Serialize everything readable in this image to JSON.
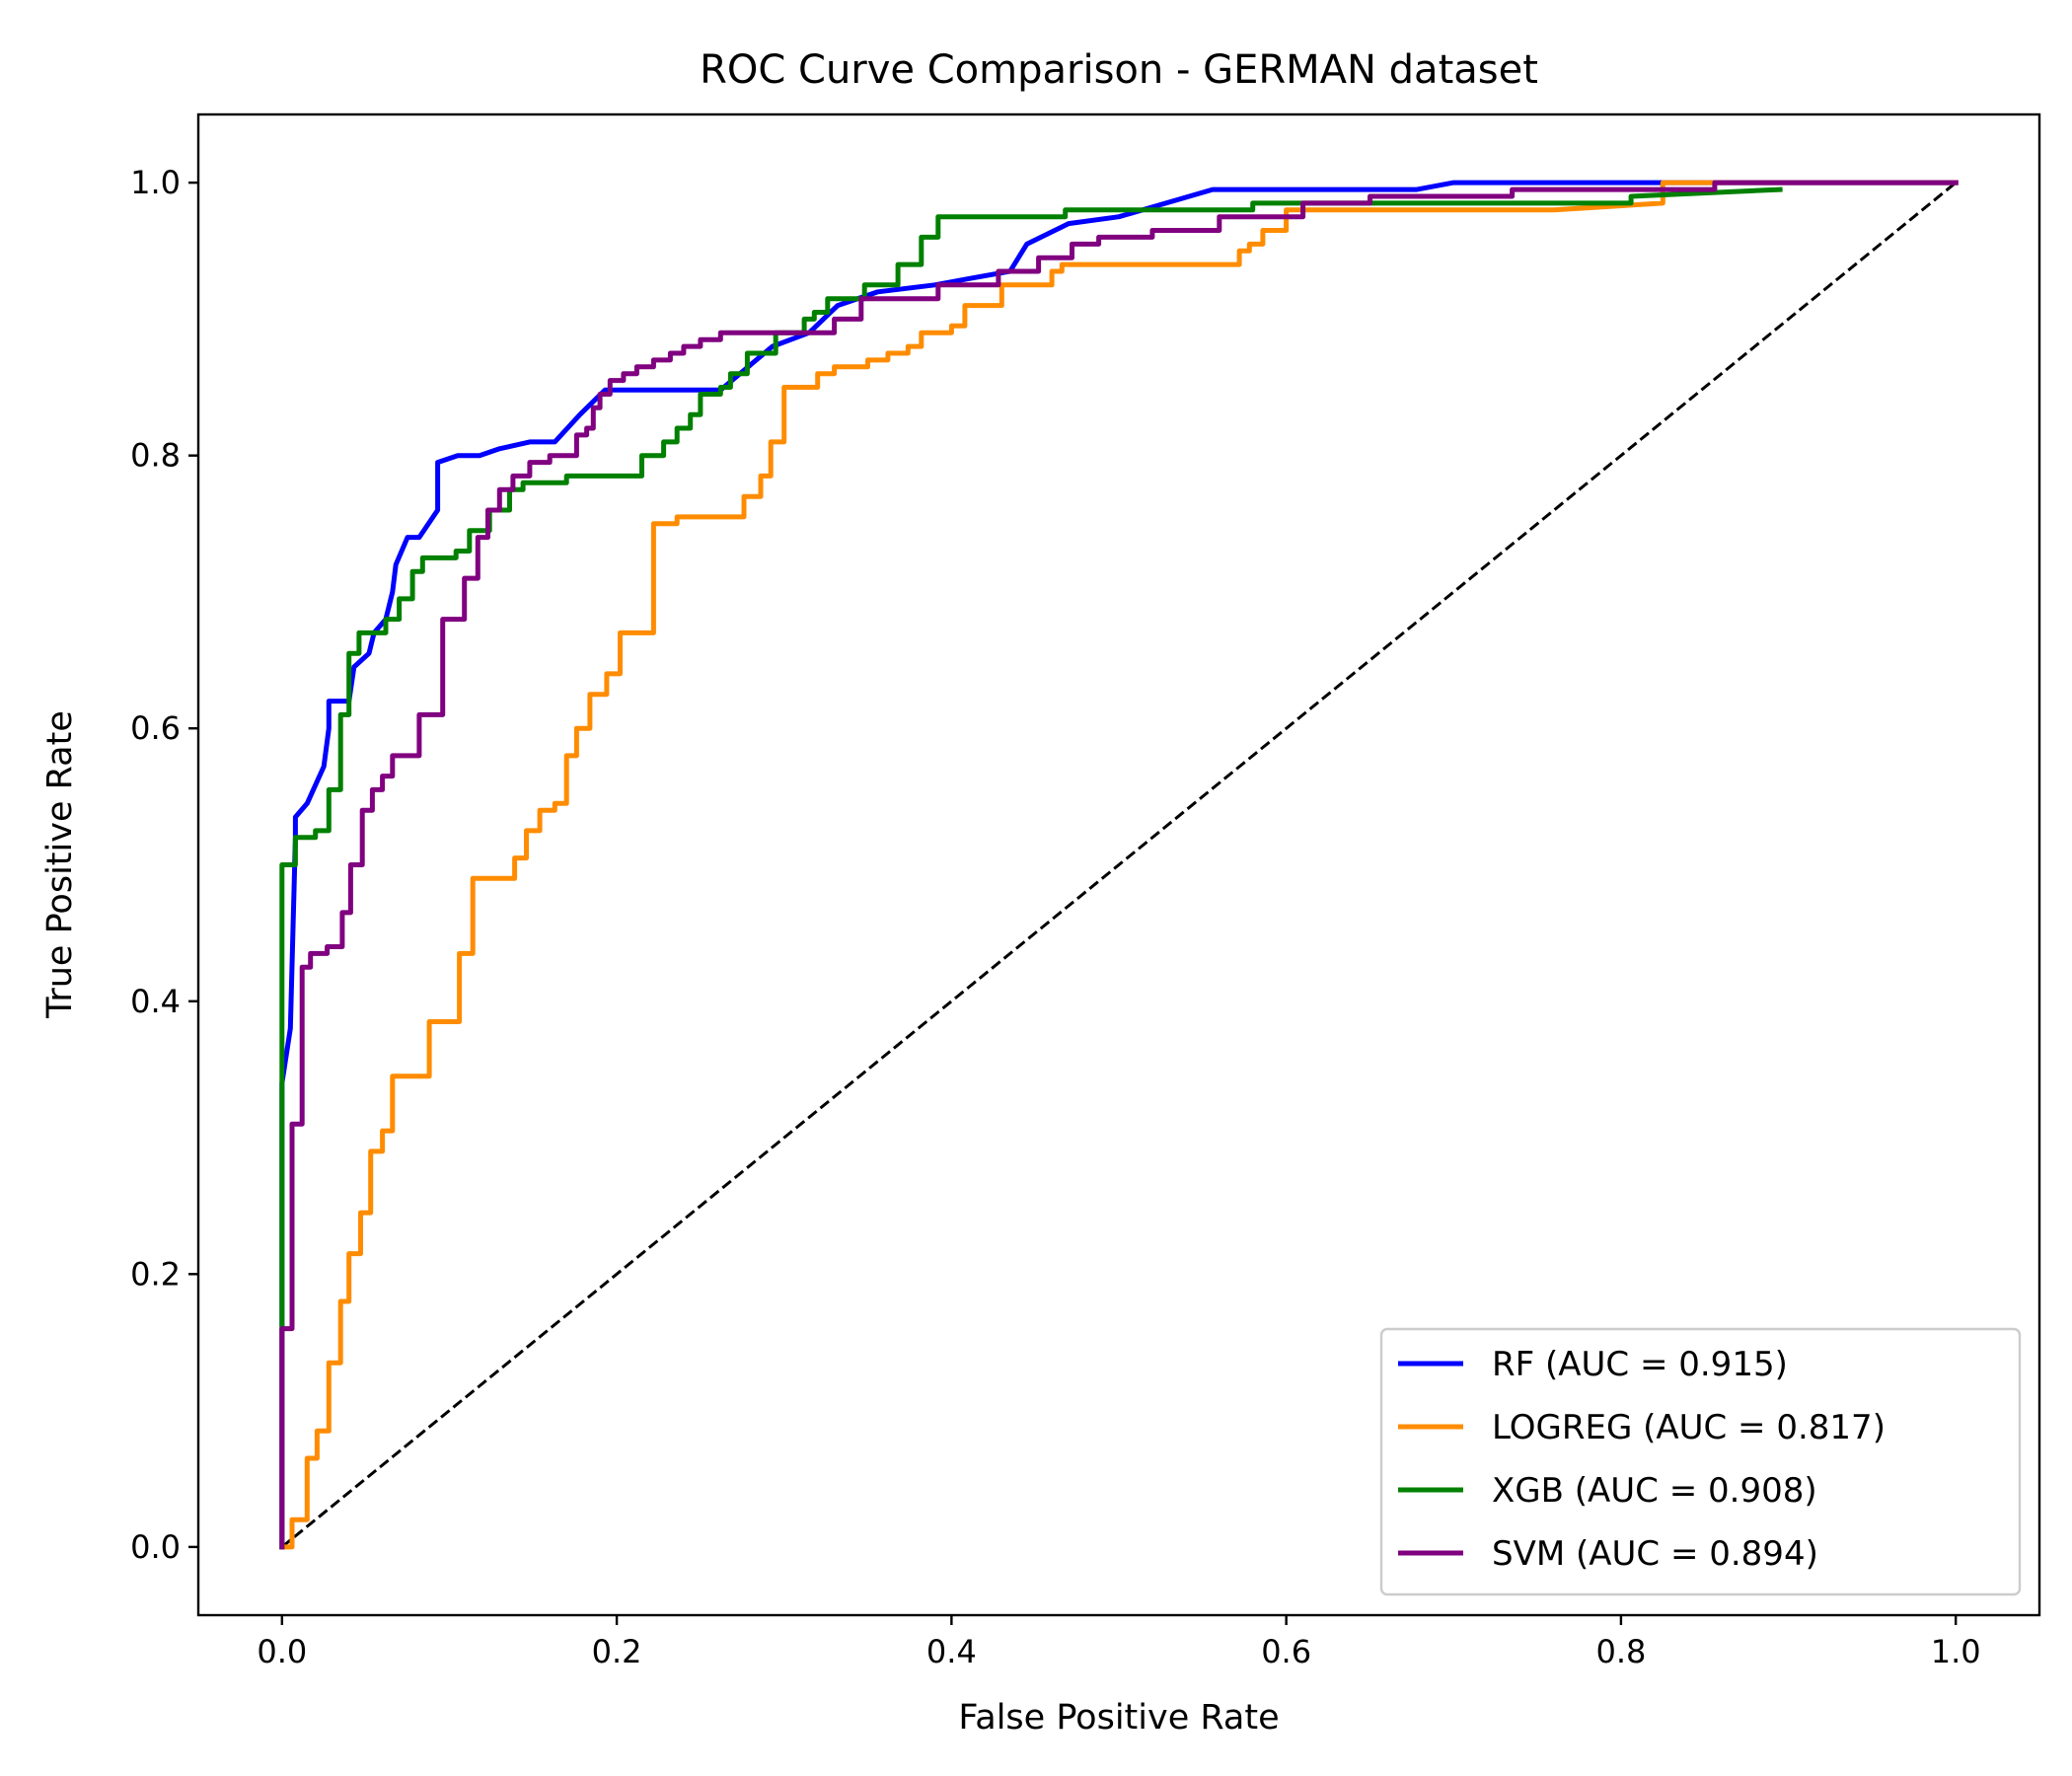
{
  "chart_data": {
    "type": "line",
    "title": "ROC Curve Comparison - GERMAN dataset",
    "xlabel": "False Positive Rate",
    "ylabel": "True Positive Rate",
    "xlim": [
      -0.05,
      1.05
    ],
    "ylim": [
      -0.05,
      1.05
    ],
    "xticks": [
      "0.0",
      "0.2",
      "0.4",
      "0.6",
      "0.8",
      "1.0"
    ],
    "yticks": [
      "0.0",
      "0.2",
      "0.4",
      "0.6",
      "0.8",
      "1.0"
    ],
    "grid": false,
    "legend_position": "lower-right",
    "baseline": {
      "x": [
        0,
        1
      ],
      "y": [
        0,
        1
      ],
      "color": "#000000",
      "dash": "dashed"
    },
    "series": [
      {
        "name": "RF (AUC = 0.915)",
        "color": "#0000ff",
        "x": [
          0.0,
          0.0,
          0.005,
          0.008,
          0.008,
          0.015,
          0.025,
          0.028,
          0.028,
          0.04,
          0.043,
          0.052,
          0.055,
          0.062,
          0.066,
          0.068,
          0.075,
          0.082,
          0.093,
          0.093,
          0.105,
          0.118,
          0.13,
          0.148,
          0.163,
          0.178,
          0.193,
          0.2,
          0.23,
          0.262,
          0.293,
          0.315,
          0.332,
          0.356,
          0.39,
          0.412,
          0.435,
          0.445,
          0.47,
          0.5,
          0.556,
          0.6,
          0.678,
          0.7,
          0.82,
          1.0
        ],
        "y": [
          0.0,
          0.34,
          0.38,
          0.52,
          0.535,
          0.545,
          0.572,
          0.6,
          0.62,
          0.62,
          0.645,
          0.655,
          0.67,
          0.68,
          0.7,
          0.72,
          0.74,
          0.74,
          0.76,
          0.795,
          0.8,
          0.8,
          0.805,
          0.81,
          0.81,
          0.83,
          0.848,
          0.848,
          0.848,
          0.848,
          0.88,
          0.89,
          0.91,
          0.92,
          0.925,
          0.93,
          0.935,
          0.955,
          0.97,
          0.975,
          0.995,
          0.995,
          0.995,
          1.0,
          1.0,
          1.0
        ]
      },
      {
        "name": "LOGREG (AUC = 0.817)",
        "color": "#ff8c00",
        "x": [
          0.0,
          0.006,
          0.006,
          0.015,
          0.015,
          0.021,
          0.021,
          0.028,
          0.028,
          0.035,
          0.035,
          0.04,
          0.04,
          0.047,
          0.047,
          0.053,
          0.053,
          0.06,
          0.06,
          0.066,
          0.066,
          0.072,
          0.072,
          0.088,
          0.088,
          0.106,
          0.106,
          0.114,
          0.114,
          0.139,
          0.139,
          0.146,
          0.146,
          0.154,
          0.154,
          0.163,
          0.163,
          0.17,
          0.17,
          0.176,
          0.176,
          0.184,
          0.184,
          0.194,
          0.194,
          0.202,
          0.202,
          0.222,
          0.222,
          0.236,
          0.236,
          0.276,
          0.276,
          0.286,
          0.286,
          0.292,
          0.292,
          0.3,
          0.3,
          0.32,
          0.32,
          0.33,
          0.33,
          0.35,
          0.35,
          0.362,
          0.362,
          0.374,
          0.374,
          0.382,
          0.382,
          0.4,
          0.4,
          0.408,
          0.408,
          0.43,
          0.43,
          0.46,
          0.46,
          0.466,
          0.466,
          0.572,
          0.572,
          0.578,
          0.578,
          0.586,
          0.586,
          0.6,
          0.6,
          0.76,
          0.825,
          0.825,
          1.0
        ],
        "y": [
          0.0,
          0.0,
          0.02,
          0.02,
          0.065,
          0.065,
          0.085,
          0.085,
          0.135,
          0.135,
          0.18,
          0.18,
          0.215,
          0.215,
          0.245,
          0.245,
          0.29,
          0.29,
          0.305,
          0.305,
          0.345,
          0.345,
          0.345,
          0.345,
          0.385,
          0.385,
          0.435,
          0.435,
          0.49,
          0.49,
          0.505,
          0.505,
          0.525,
          0.525,
          0.54,
          0.54,
          0.545,
          0.545,
          0.58,
          0.58,
          0.6,
          0.6,
          0.625,
          0.625,
          0.64,
          0.64,
          0.67,
          0.67,
          0.75,
          0.75,
          0.755,
          0.755,
          0.77,
          0.77,
          0.785,
          0.785,
          0.81,
          0.81,
          0.85,
          0.85,
          0.86,
          0.86,
          0.865,
          0.865,
          0.87,
          0.87,
          0.875,
          0.875,
          0.88,
          0.88,
          0.89,
          0.89,
          0.895,
          0.895,
          0.91,
          0.91,
          0.925,
          0.925,
          0.935,
          0.935,
          0.94,
          0.94,
          0.95,
          0.95,
          0.955,
          0.955,
          0.965,
          0.965,
          0.98,
          0.98,
          0.985,
          1.0,
          1.0
        ]
      },
      {
        "name": "XGB (AUC = 0.908)",
        "color": "#008000",
        "x": [
          0.0,
          0.0,
          0.0,
          0.008,
          0.008,
          0.02,
          0.02,
          0.028,
          0.028,
          0.035,
          0.035,
          0.04,
          0.04,
          0.046,
          0.046,
          0.062,
          0.062,
          0.07,
          0.07,
          0.078,
          0.078,
          0.084,
          0.084,
          0.104,
          0.104,
          0.112,
          0.112,
          0.124,
          0.124,
          0.136,
          0.136,
          0.144,
          0.144,
          0.17,
          0.17,
          0.215,
          0.215,
          0.228,
          0.228,
          0.236,
          0.236,
          0.244,
          0.244,
          0.25,
          0.25,
          0.262,
          0.262,
          0.268,
          0.268,
          0.278,
          0.278,
          0.295,
          0.295,
          0.312,
          0.312,
          0.318,
          0.318,
          0.326,
          0.326,
          0.348,
          0.348,
          0.368,
          0.368,
          0.382,
          0.382,
          0.392,
          0.392,
          0.468,
          0.468,
          0.58,
          0.58,
          0.806,
          0.806,
          0.895
        ],
        "y": [
          0.0,
          0.16,
          0.5,
          0.5,
          0.52,
          0.52,
          0.525,
          0.525,
          0.555,
          0.555,
          0.61,
          0.61,
          0.655,
          0.655,
          0.67,
          0.67,
          0.68,
          0.68,
          0.695,
          0.695,
          0.715,
          0.715,
          0.725,
          0.725,
          0.73,
          0.73,
          0.745,
          0.745,
          0.76,
          0.76,
          0.775,
          0.775,
          0.78,
          0.78,
          0.785,
          0.785,
          0.8,
          0.8,
          0.81,
          0.81,
          0.82,
          0.82,
          0.83,
          0.83,
          0.845,
          0.845,
          0.85,
          0.85,
          0.86,
          0.86,
          0.875,
          0.875,
          0.89,
          0.89,
          0.9,
          0.9,
          0.905,
          0.905,
          0.915,
          0.915,
          0.925,
          0.925,
          0.94,
          0.94,
          0.96,
          0.96,
          0.975,
          0.975,
          0.98,
          0.98,
          0.985,
          0.985,
          0.99,
          0.995
        ]
      },
      {
        "name": "SVM (AUC = 0.894)",
        "color": "#800080",
        "x": [
          0.0,
          0.0,
          0.0,
          0.006,
          0.006,
          0.012,
          0.012,
          0.017,
          0.017,
          0.027,
          0.027,
          0.036,
          0.036,
          0.041,
          0.041,
          0.048,
          0.048,
          0.054,
          0.054,
          0.06,
          0.06,
          0.066,
          0.066,
          0.082,
          0.082,
          0.096,
          0.096,
          0.109,
          0.109,
          0.117,
          0.117,
          0.123,
          0.123,
          0.13,
          0.13,
          0.138,
          0.138,
          0.148,
          0.148,
          0.16,
          0.16,
          0.176,
          0.176,
          0.182,
          0.182,
          0.186,
          0.186,
          0.19,
          0.19,
          0.196,
          0.196,
          0.204,
          0.204,
          0.212,
          0.212,
          0.222,
          0.222,
          0.232,
          0.232,
          0.24,
          0.24,
          0.25,
          0.25,
          0.262,
          0.262,
          0.33,
          0.33,
          0.346,
          0.346,
          0.392,
          0.392,
          0.428,
          0.428,
          0.452,
          0.452,
          0.472,
          0.472,
          0.488,
          0.488,
          0.52,
          0.52,
          0.56,
          0.56,
          0.61,
          0.61,
          0.65,
          0.65,
          0.735,
          0.735,
          0.856,
          0.856,
          1.0
        ],
        "y": [
          0.0,
          0.155,
          0.16,
          0.16,
          0.31,
          0.31,
          0.425,
          0.425,
          0.435,
          0.435,
          0.44,
          0.44,
          0.465,
          0.465,
          0.5,
          0.5,
          0.54,
          0.54,
          0.555,
          0.555,
          0.565,
          0.565,
          0.58,
          0.58,
          0.61,
          0.61,
          0.68,
          0.68,
          0.71,
          0.71,
          0.74,
          0.74,
          0.76,
          0.76,
          0.775,
          0.775,
          0.785,
          0.785,
          0.795,
          0.795,
          0.8,
          0.8,
          0.815,
          0.815,
          0.82,
          0.82,
          0.835,
          0.835,
          0.845,
          0.845,
          0.855,
          0.855,
          0.86,
          0.86,
          0.865,
          0.865,
          0.87,
          0.87,
          0.875,
          0.875,
          0.88,
          0.88,
          0.885,
          0.885,
          0.89,
          0.89,
          0.9,
          0.9,
          0.915,
          0.915,
          0.925,
          0.925,
          0.935,
          0.935,
          0.945,
          0.945,
          0.955,
          0.955,
          0.96,
          0.96,
          0.965,
          0.965,
          0.975,
          0.975,
          0.985,
          0.985,
          0.99,
          0.99,
          0.995,
          0.995,
          1.0,
          1.0
        ]
      }
    ]
  }
}
